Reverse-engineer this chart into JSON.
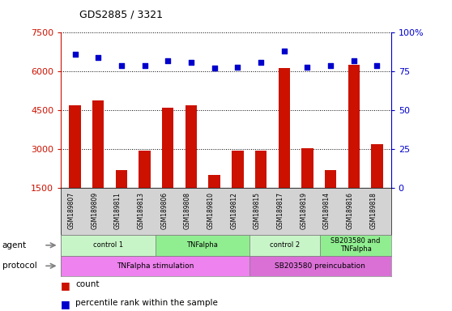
{
  "title": "GDS2885 / 3321",
  "samples": [
    "GSM189807",
    "GSM189809",
    "GSM189811",
    "GSM189813",
    "GSM189806",
    "GSM189808",
    "GSM189810",
    "GSM189812",
    "GSM189815",
    "GSM189817",
    "GSM189819",
    "GSM189814",
    "GSM189816",
    "GSM189818"
  ],
  "counts": [
    4700,
    4900,
    2200,
    2950,
    4600,
    4700,
    2000,
    2950,
    2950,
    6150,
    3050,
    2200,
    6250,
    3200
  ],
  "percentiles": [
    86,
    84,
    79,
    79,
    82,
    81,
    77,
    78,
    81,
    88,
    78,
    79,
    82,
    79
  ],
  "ylim_left": [
    1500,
    7500
  ],
  "ylim_right": [
    0,
    100
  ],
  "yticks_left": [
    1500,
    3000,
    4500,
    6000,
    7500
  ],
  "yticks_right": [
    0,
    25,
    50,
    75,
    100
  ],
  "agent_groups": [
    {
      "label": "control 1",
      "start": 0,
      "end": 4,
      "color": "#c8f5c8"
    },
    {
      "label": "TNFalpha",
      "start": 4,
      "end": 8,
      "color": "#90ee90"
    },
    {
      "label": "control 2",
      "start": 8,
      "end": 11,
      "color": "#c8f5c8"
    },
    {
      "label": "SB203580 and\nTNFalpha",
      "start": 11,
      "end": 14,
      "color": "#90ee90"
    }
  ],
  "protocol_groups": [
    {
      "label": "TNFalpha stimulation",
      "start": 0,
      "end": 8,
      "color": "#ee82ee"
    },
    {
      "label": "SB203580 preincubation",
      "start": 8,
      "end": 14,
      "color": "#da70d6"
    }
  ],
  "bar_color": "#cc1100",
  "dot_color": "#0000cc",
  "left_axis_color": "#cc1100",
  "right_axis_color": "#0000cc",
  "sample_bg": "#d3d3d3",
  "fig_bg": "#ffffff",
  "n_samples": 14
}
